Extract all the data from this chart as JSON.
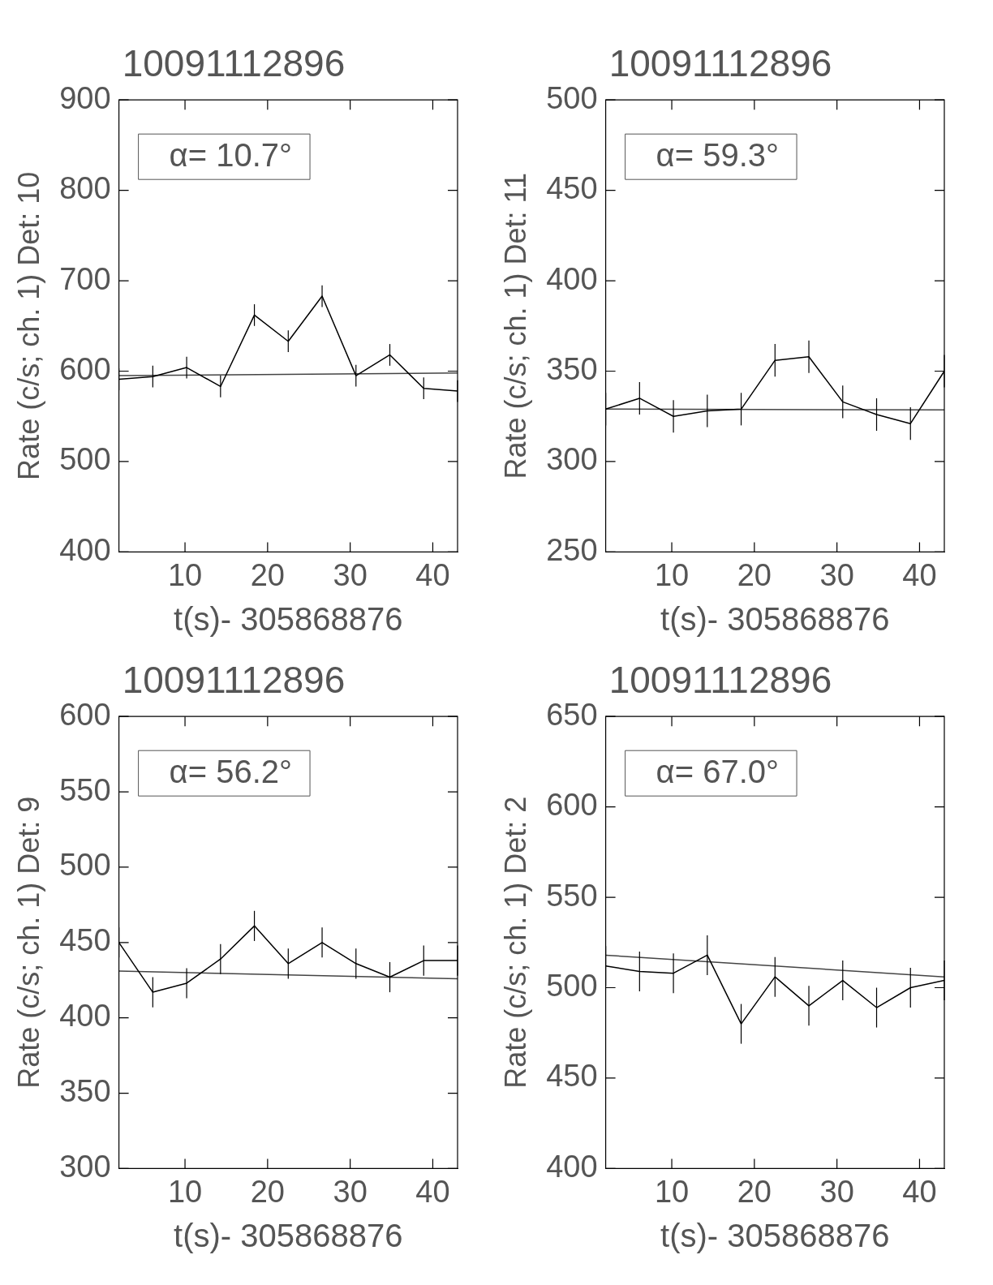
{
  "chart_data": [
    {
      "type": "line",
      "title": "10091112896",
      "xlabel": "t(s)- 305868876",
      "ylabel": "Rate (c/s; ch. 1) Det: 10",
      "xlim": [
        2,
        43
      ],
      "xticks": [
        10,
        20,
        30,
        40
      ],
      "ylim": [
        400,
        900
      ],
      "yticks": [
        400,
        500,
        600,
        700,
        800,
        900
      ],
      "grid": false,
      "marker": "none",
      "line_style": "solid",
      "annotations": [
        "α= 10.7°"
      ],
      "series": [
        {
          "color": "#000000",
          "x": [
            2,
            6.1,
            10.2,
            14.3,
            18.4,
            22.5,
            26.6,
            30.7,
            34.8,
            38.9,
            43
          ],
          "values": [
            591,
            594,
            604,
            583,
            662,
            633,
            683,
            595,
            618,
            581,
            578
          ],
          "errors": [
            12,
            12,
            12,
            12,
            12,
            12,
            12,
            12,
            12,
            12,
            12
          ]
        },
        {
          "type": "line",
          "color": "#444444",
          "x": [
            2,
            43
          ],
          "values": [
            595,
            598
          ]
        }
      ]
    },
    {
      "type": "line",
      "title": "10091112896",
      "xlabel": "t(s)- 305868876",
      "ylabel": "Rate (c/s; ch. 1) Det: 11",
      "xlim": [
        2,
        43
      ],
      "xticks": [
        10,
        20,
        30,
        40
      ],
      "ylim": [
        250,
        500
      ],
      "yticks": [
        250,
        300,
        350,
        400,
        450,
        500
      ],
      "grid": false,
      "marker": "none",
      "line_style": "solid",
      "annotations": [
        "α= 59.3°"
      ],
      "series": [
        {
          "color": "#000000",
          "x": [
            2,
            6.1,
            10.2,
            14.3,
            18.4,
            22.5,
            26.6,
            30.7,
            34.8,
            38.9,
            43
          ],
          "values": [
            329,
            335,
            325,
            328,
            329,
            356,
            358,
            333,
            326,
            321,
            350
          ],
          "errors": [
            9,
            9,
            9,
            9,
            9,
            9,
            9,
            9,
            9,
            9,
            9
          ]
        },
        {
          "type": "line",
          "color": "#444444",
          "x": [
            2,
            43
          ],
          "values": [
            329,
            328.6
          ]
        }
      ]
    },
    {
      "type": "line",
      "title": "10091112896",
      "xlabel": "t(s)- 305868876",
      "ylabel": "Rate (c/s; ch. 1) Det: 9",
      "xlim": [
        2,
        43
      ],
      "xticks": [
        10,
        20,
        30,
        40
      ],
      "ylim": [
        300,
        600
      ],
      "yticks": [
        300,
        350,
        400,
        450,
        500,
        550,
        600
      ],
      "grid": false,
      "marker": "none",
      "line_style": "solid",
      "annotations": [
        "α= 56.2°"
      ],
      "series": [
        {
          "color": "#000000",
          "x": [
            2,
            6.1,
            10.2,
            14.3,
            18.4,
            22.5,
            26.6,
            30.7,
            34.8,
            38.9,
            43
          ],
          "values": [
            450,
            417,
            423,
            439,
            461,
            436,
            450,
            436,
            427,
            438,
            438
          ],
          "errors": [
            10,
            10,
            10,
            10,
            10,
            10,
            10,
            10,
            10,
            10,
            10
          ]
        },
        {
          "type": "line",
          "color": "#444444",
          "x": [
            2,
            43
          ],
          "values": [
            431,
            426
          ]
        }
      ]
    },
    {
      "type": "line",
      "title": "10091112896",
      "xlabel": "t(s)- 305868876",
      "ylabel": "Rate (c/s; ch. 1) Det: 2",
      "xlim": [
        2,
        43
      ],
      "xticks": [
        10,
        20,
        30,
        40
      ],
      "ylim": [
        400,
        650
      ],
      "yticks": [
        400,
        450,
        500,
        550,
        600,
        650
      ],
      "grid": false,
      "marker": "none",
      "line_style": "solid",
      "annotations": [
        "α= 67.0°"
      ],
      "series": [
        {
          "color": "#000000",
          "x": [
            2,
            6.1,
            10.2,
            14.3,
            18.4,
            22.5,
            26.6,
            30.7,
            34.8,
            38.9,
            43
          ],
          "values": [
            512,
            509,
            508,
            518,
            480,
            506,
            490,
            504,
            489,
            500,
            504
          ],
          "errors": [
            11,
            11,
            11,
            11,
            11,
            11,
            11,
            11,
            11,
            11,
            11
          ]
        },
        {
          "type": "line",
          "color": "#444444",
          "x": [
            2,
            43
          ],
          "values": [
            518,
            506
          ]
        }
      ]
    }
  ]
}
